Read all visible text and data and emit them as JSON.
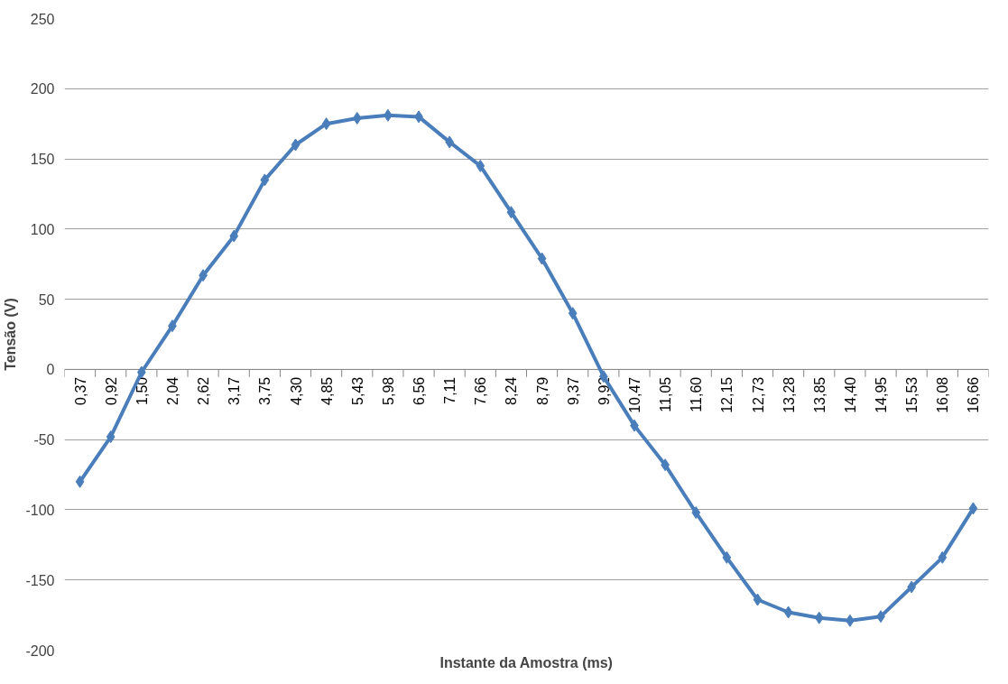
{
  "chart_data": {
    "type": "line",
    "xlabel": "Instante da Amostra (ms)",
    "ylabel": "Tensão (V)",
    "categories": [
      "0,37",
      "0,92",
      "1,50",
      "2,04",
      "2,62",
      "3,17",
      "3,75",
      "4,30",
      "4,85",
      "5,43",
      "5,98",
      "6,56",
      "7,11",
      "7,66",
      "8,24",
      "8,79",
      "9,37",
      "9,92",
      "10,47",
      "11,05",
      "11,60",
      "12,15",
      "12,73",
      "13,28",
      "13,85",
      "14,40",
      "14,95",
      "15,53",
      "16,08",
      "16,66"
    ],
    "series": [
      {
        "color": "#4a7ebb",
        "values": [
          -80,
          -48,
          -2,
          31,
          67,
          95,
          135,
          160,
          175,
          179,
          181,
          180,
          162,
          145,
          112,
          79,
          40,
          -5,
          -40,
          -68,
          -102,
          -134,
          -164,
          -173,
          -177,
          -179,
          -176,
          -155,
          -134,
          -99
        ]
      }
    ],
    "ylim": [
      -200,
      250
    ],
    "yticks": [
      -200,
      -150,
      -100,
      -50,
      0,
      50,
      100,
      150,
      200,
      250
    ],
    "grid": "y",
    "marker": "diamond",
    "line_style": "solid"
  }
}
